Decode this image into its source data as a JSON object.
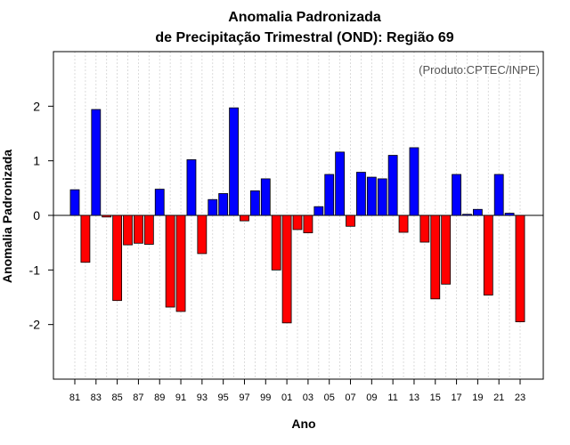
{
  "chart_data": {
    "type": "bar",
    "title": [
      "Anomalia Padronizada",
      "de Precipitação Trimestral (OND): Região 69"
    ],
    "credit": "(Produto:CPTEC/INPE)",
    "xlabel": "Ano",
    "ylabel": "Anomalia Padronizada",
    "ylim": [
      -3,
      3
    ],
    "yticks": [
      -2,
      -1,
      0,
      1,
      2
    ],
    "ytick_labels": [
      "-2",
      "-1",
      "0",
      "1",
      "2"
    ],
    "grid": true,
    "categories": [
      "81",
      "82",
      "83",
      "84",
      "85",
      "86",
      "87",
      "88",
      "89",
      "90",
      "91",
      "92",
      "93",
      "94",
      "95",
      "96",
      "97",
      "98",
      "99",
      "00",
      "01",
      "02",
      "03",
      "04",
      "05",
      "06",
      "07",
      "08",
      "09",
      "10",
      "11",
      "12",
      "13",
      "14",
      "15",
      "16",
      "17",
      "18",
      "19",
      "20",
      "21",
      "22",
      "23"
    ],
    "tick_labels": [
      "81",
      "83",
      "85",
      "87",
      "89",
      "91",
      "93",
      "95",
      "97",
      "99",
      "01",
      "03",
      "05",
      "07",
      "09",
      "11",
      "13",
      "15",
      "17",
      "19",
      "21",
      "23"
    ],
    "values": [
      0.47,
      -0.86,
      1.94,
      -0.03,
      -1.56,
      -0.54,
      -0.51,
      -0.53,
      0.48,
      -1.68,
      -1.76,
      1.02,
      -0.7,
      0.29,
      0.4,
      1.97,
      -0.1,
      0.45,
      0.67,
      -1.0,
      -1.97,
      -0.26,
      -0.32,
      0.16,
      0.75,
      1.16,
      -0.2,
      0.79,
      0.7,
      0.67,
      1.1,
      -0.31,
      1.24,
      -0.49,
      -1.53,
      -1.26,
      0.75,
      0.02,
      0.11,
      -1.46,
      0.75,
      0.04,
      -1.95
    ],
    "colors": {
      "positive": "#0000ff",
      "negative": "#ff0000",
      "outline": "#000000",
      "grid": "#d3d3d3"
    }
  }
}
